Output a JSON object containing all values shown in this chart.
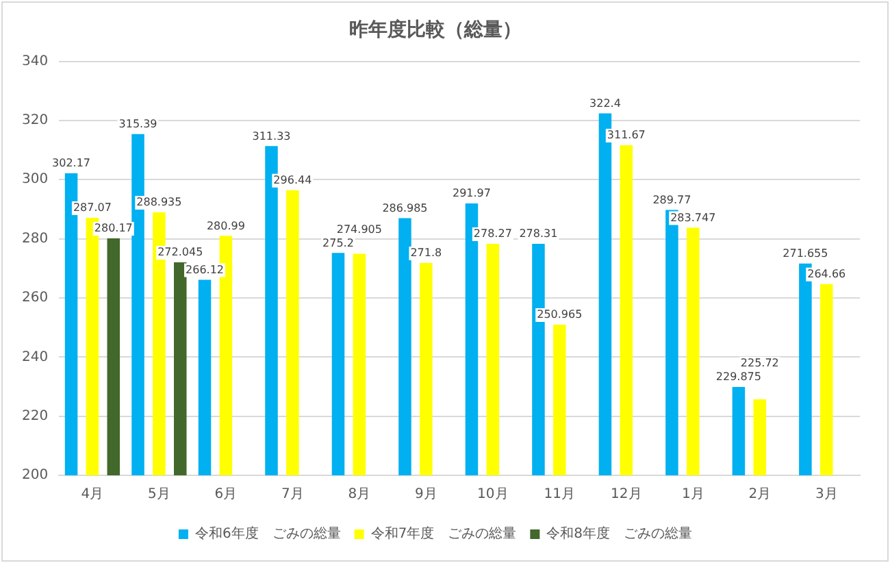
{
  "chart_data": {
    "type": "bar",
    "title": "昨年度比較（総量）",
    "categories": [
      "4月",
      "5月",
      "6月",
      "7月",
      "8月",
      "9月",
      "10月",
      "11月",
      "12月",
      "1月",
      "2月",
      "3月"
    ],
    "series": [
      {
        "name": "令和6年度　ごみの総量",
        "color": "#00b0f0",
        "values": [
          302.17,
          315.39,
          266.12,
          311.33,
          275.2,
          286.985,
          291.97,
          278.31,
          322.4,
          289.77,
          229.875,
          271.655
        ]
      },
      {
        "name": "令和7年度　ごみの総量",
        "color": "#ffff00",
        "values": [
          287.07,
          288.935,
          280.99,
          296.44,
          274.905,
          271.8,
          278.27,
          250.965,
          311.67,
          283.747,
          225.72,
          264.66
        ]
      },
      {
        "name": "令和8年度　ごみの総量",
        "color": "#43682b",
        "values": [
          280.17,
          272.045,
          null,
          null,
          null,
          null,
          null,
          null,
          null,
          null,
          null,
          null
        ]
      }
    ],
    "ylim": [
      200,
      340
    ],
    "yticks": [
      200,
      220,
      240,
      260,
      280,
      300,
      320,
      340
    ],
    "grid": "y",
    "legend": "bottom",
    "data_labels": true
  }
}
